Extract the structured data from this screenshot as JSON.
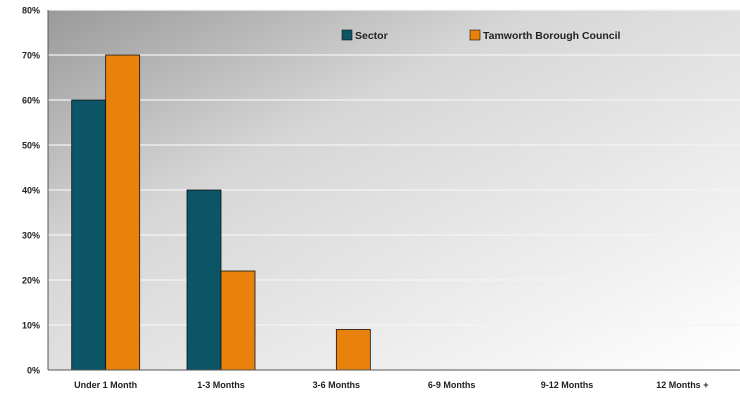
{
  "chart_data": {
    "type": "bar",
    "title": "",
    "xlabel": "",
    "ylabel": "",
    "categories": [
      "Under 1 Month",
      "1-3 Months",
      "3-6 Months",
      "6-9 Months",
      "9-12 Months",
      "12 Months +"
    ],
    "series": [
      {
        "name": "Sector",
        "values": [
          60,
          40,
          0,
          0,
          0,
          0
        ],
        "color": "#0b5566"
      },
      {
        "name": "Tamworth Borough Council",
        "values": [
          70,
          22,
          9,
          0,
          0,
          0
        ],
        "color": "#e8820c"
      }
    ],
    "y_ticks": [
      "0%",
      "10%",
      "20%",
      "30%",
      "40%",
      "50%",
      "60%",
      "70%",
      "80%"
    ],
    "ylim": [
      0,
      80
    ],
    "y_unit": "%",
    "grid": true,
    "legend_position": "top-right"
  }
}
